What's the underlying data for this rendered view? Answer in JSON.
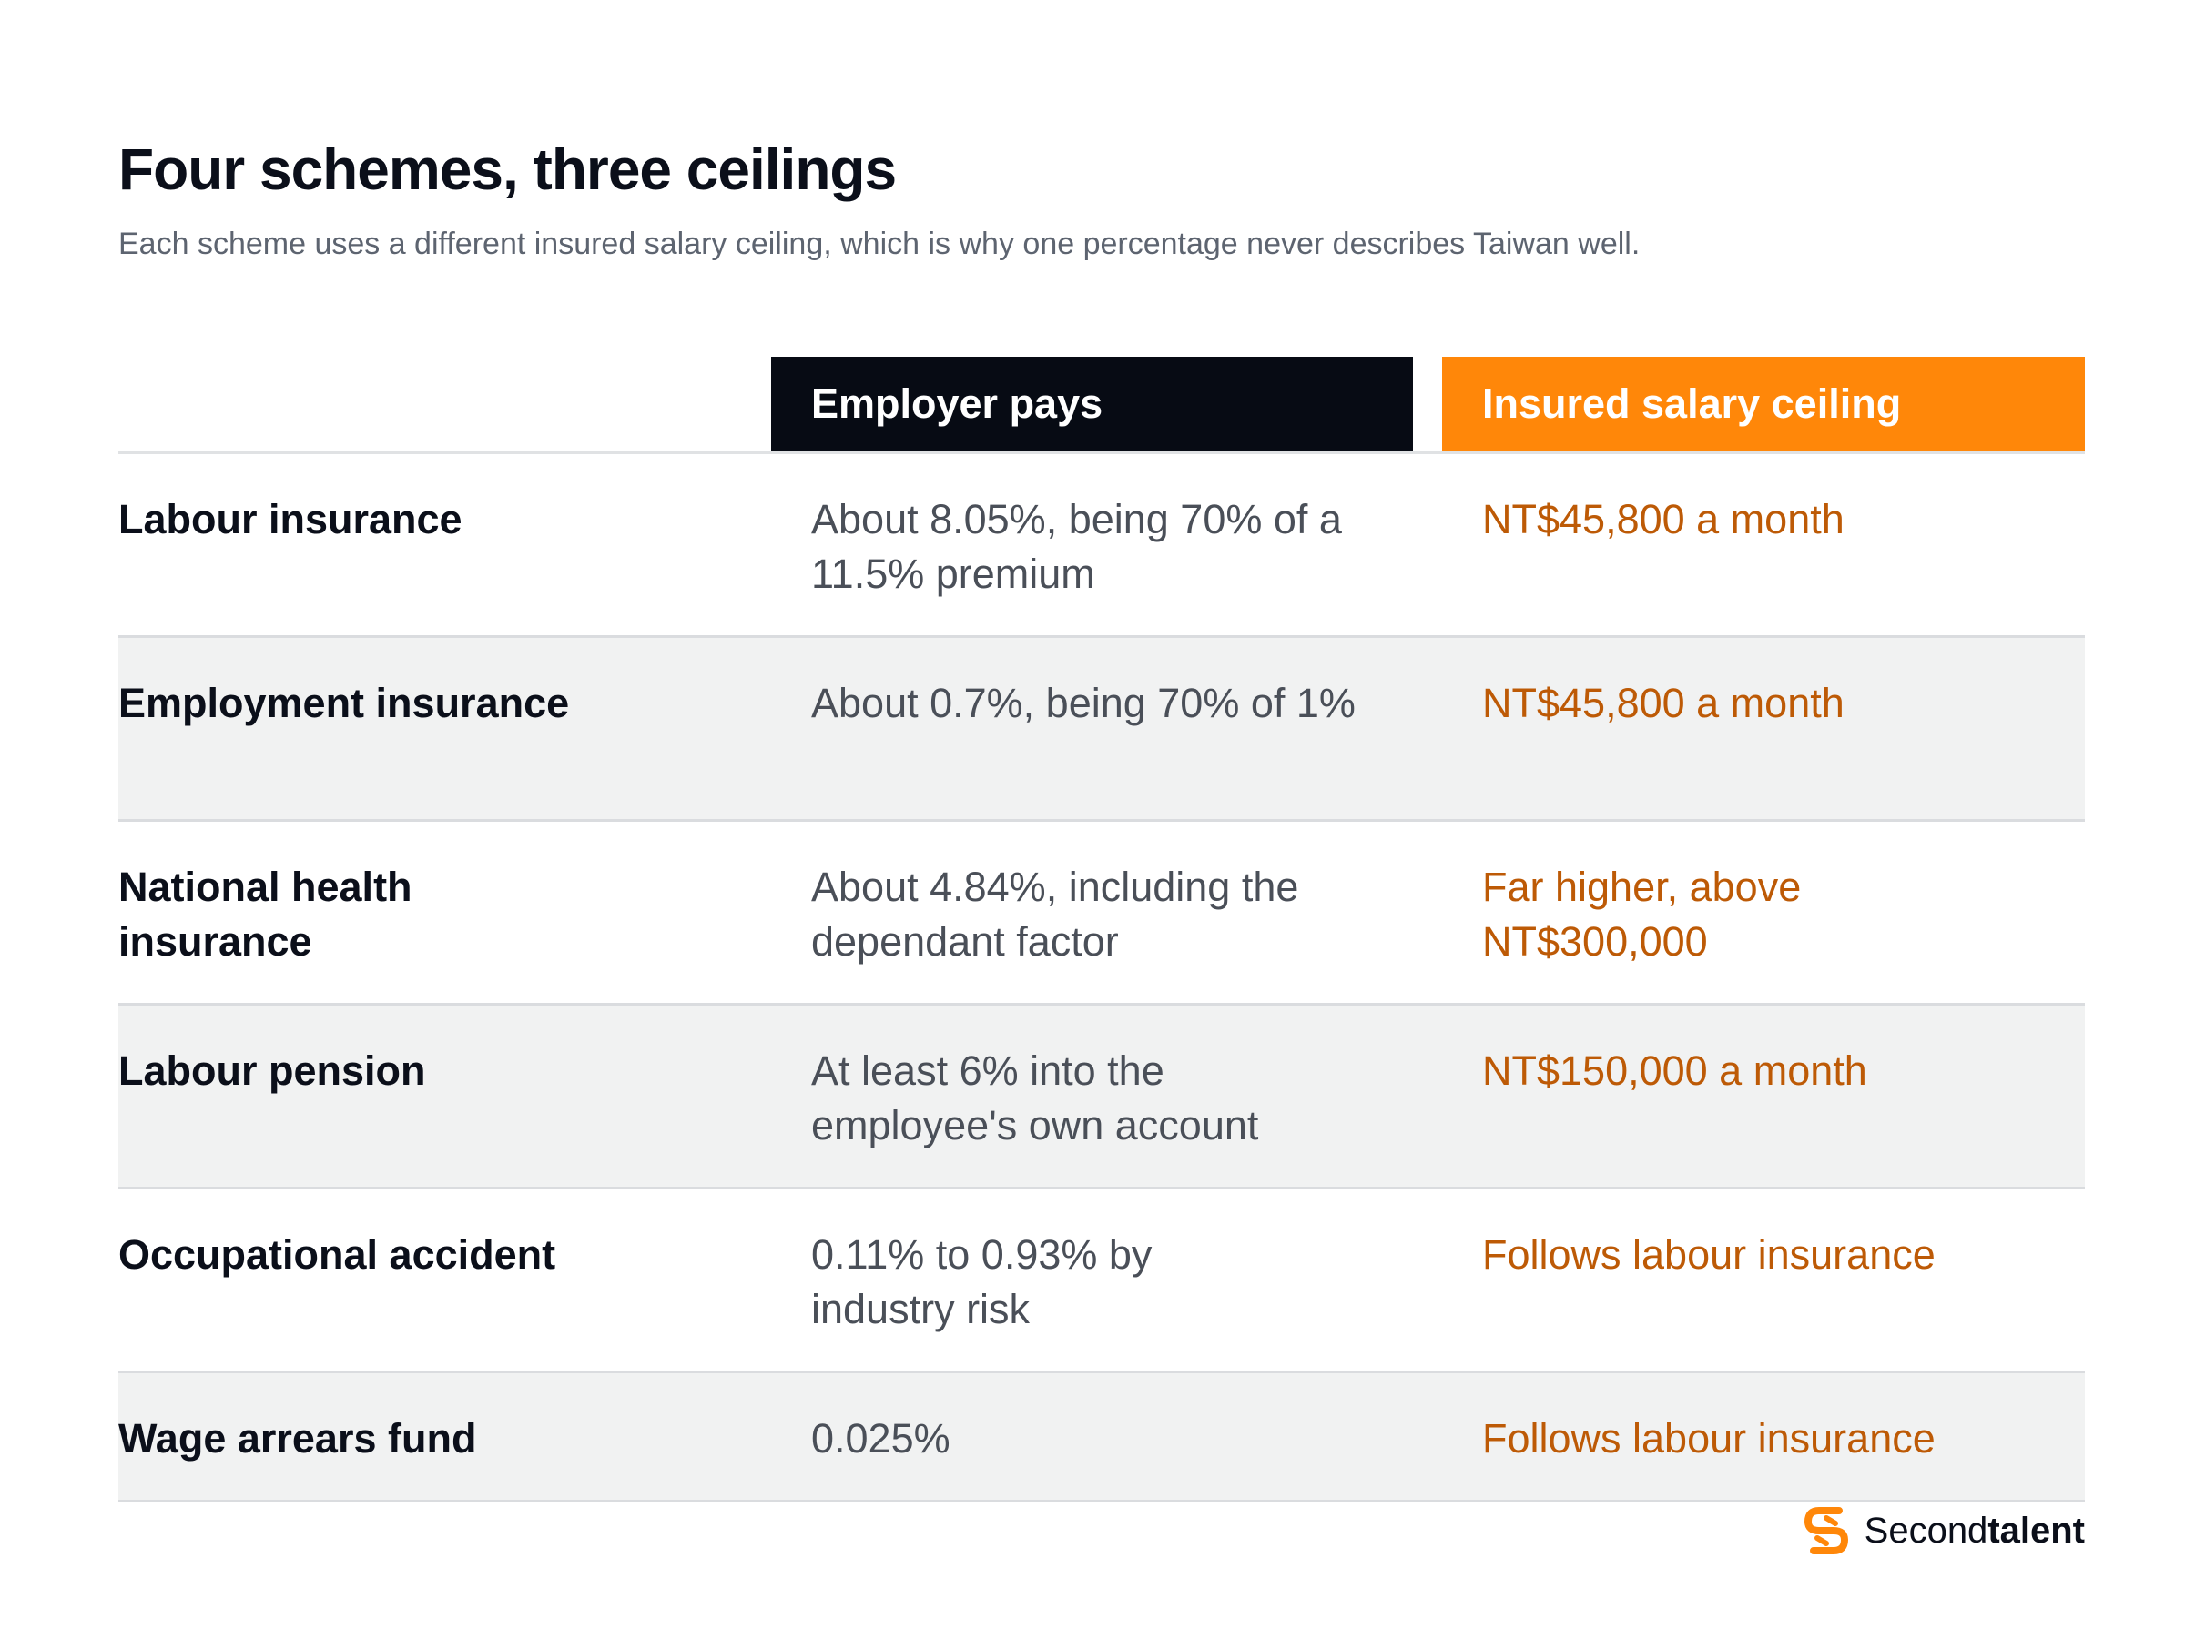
{
  "title": "Four schemes, three ceilings",
  "subtitle": "Each scheme uses a different insured salary ceiling, which is why one percentage never describes Taiwan well.",
  "table": {
    "headers": {
      "scheme": "",
      "employer": "Employer pays",
      "ceiling": "Insured salary ceiling"
    },
    "rows": [
      {
        "scheme": "Labour insurance",
        "employer": "About 8.05%, being 70% of a 11.5% premium",
        "ceiling": "NT$45,800 a month"
      },
      {
        "scheme": "Employment insurance",
        "employer": "About 0.7%, being 70% of 1%",
        "ceiling": "NT$45,800 a month"
      },
      {
        "scheme": "National health insurance",
        "employer": "About 4.84%, including the dependant factor",
        "ceiling": "Far higher, above NT$300,000"
      },
      {
        "scheme": "Labour pension",
        "employer": "At least 6% into the employee's own account",
        "ceiling": "NT$150,000 a month"
      },
      {
        "scheme": "Occupational accident",
        "employer": "0.11% to 0.93% by industry risk",
        "ceiling": "Follows labour insurance"
      },
      {
        "scheme": "Wage arrears fund",
        "employer": "0.025%",
        "ceiling": "Follows labour insurance"
      }
    ]
  },
  "brand": {
    "icon": "secondtalent-logo-icon",
    "name_part1": "Second",
    "name_part2": "talent",
    "accent_color": "#ff8709"
  },
  "colors": {
    "header_dark": "#070b14",
    "header_accent": "#ff8709",
    "ceiling_text": "#bd5a06",
    "row_shade": "#f1f2f2"
  }
}
